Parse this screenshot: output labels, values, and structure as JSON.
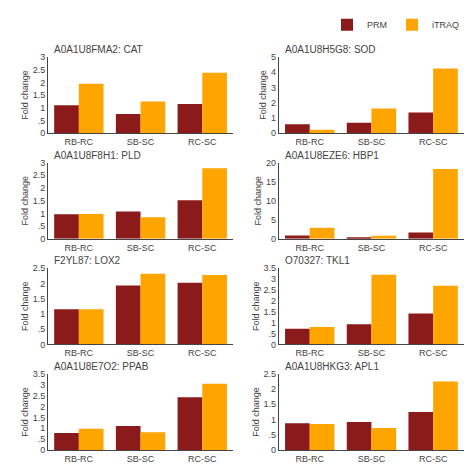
{
  "chart_data": [
    {
      "type": "bar",
      "title": "A0A1U8FMA2: CAT",
      "ylabel": "Fold change",
      "categories": [
        "RB-RC",
        "SB-SC",
        "RC-SC"
      ],
      "series": [
        {
          "name": "PRM",
          "color": "#8B1A1A",
          "values": [
            1.1,
            0.75,
            1.15
          ]
        },
        {
          "name": "iTRAQ",
          "color": "#FFA500",
          "values": [
            1.95,
            1.25,
            2.38
          ]
        }
      ],
      "ylim": [
        0,
        3
      ],
      "yticks": [
        0,
        {
          "value": 0.5,
          "label": ".5"
        },
        1,
        1.5,
        2,
        2.5,
        3
      ],
      "grid": false,
      "legend": "upper right"
    },
    {
      "type": "bar",
      "title": "A0A1U8H5G8: SOD",
      "ylabel": "Fold change",
      "categories": [
        "RB-RC",
        "SB-SC",
        "RC-SC"
      ],
      "series": [
        {
          "name": "PRM",
          "color": "#8B1A1A",
          "values": [
            0.58,
            0.68,
            1.35
          ]
        },
        {
          "name": "iTRAQ",
          "color": "#FFA500",
          "values": [
            0.22,
            1.62,
            4.25
          ]
        }
      ],
      "ylim": [
        0,
        5
      ],
      "yticks": [
        0,
        1,
        2,
        3,
        4,
        5
      ],
      "grid": false,
      "legend": false
    },
    {
      "type": "bar",
      "title": "A0A1U8F8H1: PLD",
      "ylabel": "Fold change",
      "categories": [
        "RB-RC",
        "SB-SC",
        "RC-SC"
      ],
      "series": [
        {
          "name": "PRM",
          "color": "#8B1A1A",
          "values": [
            0.97,
            1.07,
            1.52
          ]
        },
        {
          "name": "iTRAQ",
          "color": "#FFA500",
          "values": [
            0.98,
            0.85,
            2.78
          ]
        }
      ],
      "ylim": [
        0,
        3
      ],
      "yticks": [
        0,
        {
          "value": 0.5,
          "label": ".5"
        },
        1,
        1.5,
        2,
        2.5,
        3
      ],
      "grid": false,
      "legend": false
    },
    {
      "type": "bar",
      "title": "A0A1U8EZE6: HBP1",
      "ylabel": "Fold change",
      "categories": [
        "RB-RC",
        "SB-SC",
        "RC-SC"
      ],
      "series": [
        {
          "name": "PRM",
          "color": "#8B1A1A",
          "values": [
            0.85,
            0.38,
            1.65
          ]
        },
        {
          "name": "iTRAQ",
          "color": "#FFA500",
          "values": [
            2.9,
            0.78,
            18.3
          ]
        }
      ],
      "ylim": [
        0,
        20
      ],
      "yticks": [
        0,
        5,
        10,
        15,
        20
      ],
      "grid": false,
      "legend": false
    },
    {
      "type": "bar",
      "title": "F2YL87: LOX2",
      "ylabel": "Fold change",
      "categories": [
        "RB-RC",
        "SB-SC",
        "RC-SC"
      ],
      "series": [
        {
          "name": "PRM",
          "color": "#8B1A1A",
          "values": [
            1.15,
            1.93,
            2.02
          ]
        },
        {
          "name": "iTRAQ",
          "color": "#FFA500",
          "values": [
            1.15,
            2.32,
            2.28
          ]
        }
      ],
      "ylim": [
        0,
        2.5
      ],
      "yticks": [
        0,
        {
          "value": 0.5,
          "label": ".5"
        },
        1,
        1.5,
        2,
        2.5
      ],
      "grid": false,
      "legend": false
    },
    {
      "type": "bar",
      "title": "O70327: TKL1",
      "ylabel": "Fold change",
      "categories": [
        "RB-RC",
        "SB-SC",
        "RC-SC"
      ],
      "series": [
        {
          "name": "PRM",
          "color": "#8B1A1A",
          "values": [
            0.72,
            0.92,
            1.42
          ]
        },
        {
          "name": "iTRAQ",
          "color": "#FFA500",
          "values": [
            0.8,
            3.2,
            2.7
          ]
        }
      ],
      "ylim": [
        0,
        3.5
      ],
      "yticks": [
        0,
        {
          "value": 0.5,
          "label": ".5"
        },
        1,
        1.5,
        2,
        2.5,
        3,
        3.5
      ],
      "grid": false,
      "legend": false
    },
    {
      "type": "bar",
      "title": "A0A1U8E7O2: PPAB",
      "ylabel": "Fold change",
      "categories": [
        "RB-RC",
        "SB-SC",
        "RC-SC"
      ],
      "series": [
        {
          "name": "PRM",
          "color": "#8B1A1A",
          "values": [
            0.78,
            1.1,
            2.42
          ]
        },
        {
          "name": "iTRAQ",
          "color": "#FFA500",
          "values": [
            0.98,
            0.82,
            3.05
          ]
        }
      ],
      "ylim": [
        0,
        3.5
      ],
      "yticks": [
        0,
        {
          "value": 0.5,
          "label": ".5"
        },
        1,
        1.5,
        2,
        2.5,
        3,
        3.5
      ],
      "grid": false,
      "legend": false
    },
    {
      "type": "bar",
      "title": "A0A1U8HKG3: APL1",
      "ylabel": "Fold change",
      "categories": [
        "RB-RC",
        "SB-SC",
        "RC-SC"
      ],
      "series": [
        {
          "name": "PRM",
          "color": "#8B1A1A",
          "values": [
            0.88,
            0.92,
            1.25
          ]
        },
        {
          "name": "iTRAQ",
          "color": "#FFA500",
          "values": [
            0.85,
            0.72,
            2.25
          ]
        }
      ],
      "ylim": [
        0,
        2.5
      ],
      "yticks": [
        0,
        {
          "value": 0.5,
          "label": ".5"
        },
        1,
        1.5,
        2,
        2.5
      ],
      "grid": false,
      "legend": false
    }
  ]
}
